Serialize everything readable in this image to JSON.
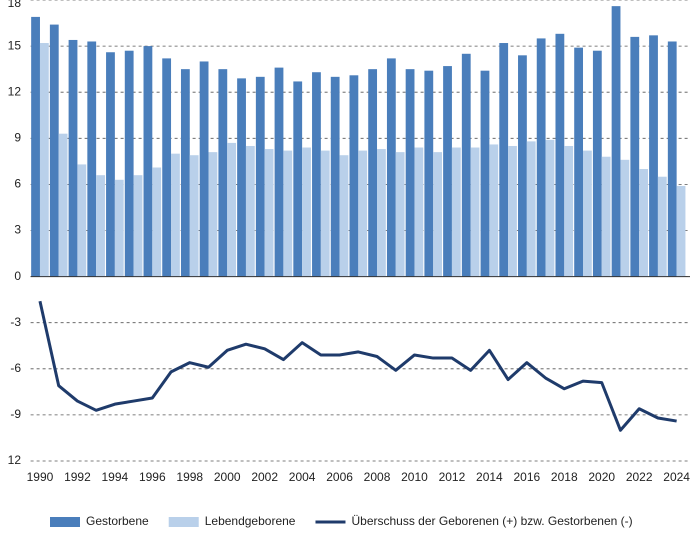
{
  "chart_data": {
    "type": "bar-line",
    "categories": [
      "1990",
      null,
      "1992",
      null,
      "1994",
      null,
      "1996",
      null,
      "1998",
      null,
      "2000",
      null,
      "2002",
      null,
      "2004",
      null,
      "2006",
      null,
      "2008",
      null,
      "2010",
      null,
      "2012",
      null,
      "2014",
      null,
      "2016",
      null,
      "2018",
      null,
      "2020",
      null,
      "2022",
      null,
      "2024"
    ],
    "series": [
      {
        "name": "Gestorbene",
        "color": "#4a7ebb",
        "kind": "bar",
        "values": [
          16.9,
          16.4,
          15.4,
          15.3,
          14.6,
          14.7,
          15.0,
          14.2,
          13.5,
          14.0,
          13.5,
          12.9,
          13.0,
          13.6,
          12.7,
          13.3,
          13.0,
          13.1,
          13.5,
          14.2,
          13.5,
          13.4,
          13.7,
          14.5,
          13.4,
          15.2,
          14.4,
          15.5,
          15.8,
          14.9,
          14.7,
          17.6,
          15.6,
          15.7,
          15.3
        ]
      },
      {
        "name": "Lebendgeborene",
        "color": "#b9d0ea",
        "kind": "bar",
        "values": [
          15.2,
          9.3,
          7.3,
          6.6,
          6.3,
          6.6,
          7.1,
          8.0,
          7.9,
          8.1,
          8.7,
          8.5,
          8.3,
          8.2,
          8.4,
          8.2,
          7.9,
          8.2,
          8.3,
          8.1,
          8.4,
          8.1,
          8.4,
          8.4,
          8.6,
          8.5,
          8.8,
          8.9,
          8.5,
          8.2,
          7.8,
          7.6,
          7.0,
          6.5,
          5.9
        ]
      },
      {
        "name": "Überschuss der Geborenen (+) bzw. Gestorbenen (-)",
        "color": "#1f3b6b",
        "kind": "line",
        "values": [
          -1.6,
          -7.1,
          -8.1,
          -8.7,
          -8.3,
          -8.1,
          -7.9,
          -6.2,
          -5.6,
          -5.9,
          -4.8,
          -4.4,
          -4.7,
          -5.4,
          -4.3,
          -5.1,
          -5.1,
          -4.9,
          -5.2,
          -6.1,
          -5.1,
          -5.3,
          -5.3,
          -6.1,
          -4.8,
          -6.7,
          -5.6,
          -6.6,
          -7.3,
          -6.8,
          -6.9,
          -10.0,
          -8.6,
          -9.2,
          -9.4
        ]
      }
    ],
    "ylim": [
      -12,
      18
    ],
    "yticks": [
      {
        "value": -12,
        "label": "12"
      },
      -9,
      -6,
      -3,
      0,
      3,
      6,
      9,
      12,
      15,
      18
    ],
    "grid": true
  }
}
